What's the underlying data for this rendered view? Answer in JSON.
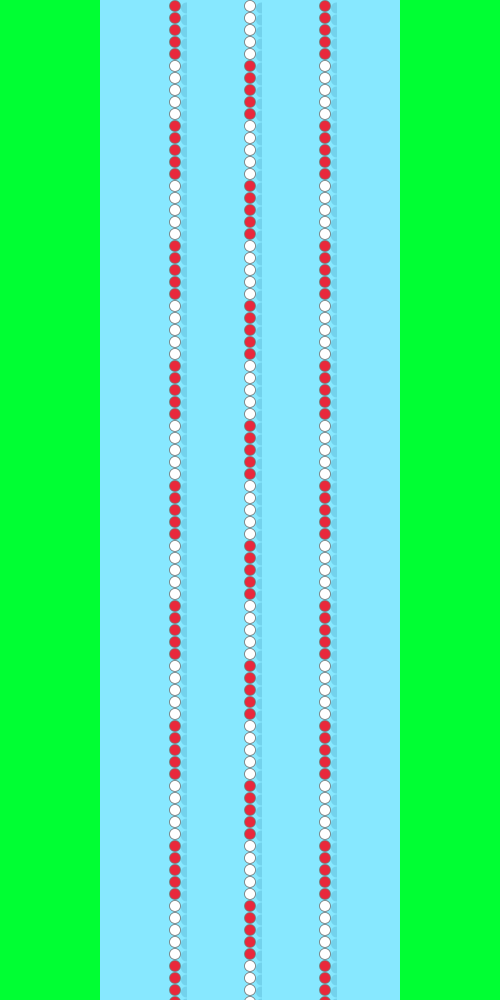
{
  "colors": {
    "grass": "#00FF33",
    "water": "#87E8FF",
    "float_red": "#E8283C",
    "float_white": "#FFFFFF",
    "float_outline": "#7A7A7A",
    "float_shadow": "#6CCBE6"
  },
  "lane_ropes": [
    {
      "name": "lane-rope-left",
      "pattern": [
        "red",
        "red",
        "red",
        "red",
        "red",
        "white",
        "white",
        "white",
        "white",
        "white"
      ],
      "phase": 0
    },
    {
      "name": "lane-rope-center",
      "pattern": [
        "white",
        "white",
        "white",
        "white",
        "white",
        "red",
        "red",
        "red",
        "red",
        "red"
      ],
      "phase": 0
    },
    {
      "name": "lane-rope-right",
      "pattern": [
        "red",
        "red",
        "red",
        "red",
        "red",
        "white",
        "white",
        "white",
        "white",
        "white"
      ],
      "phase": 0
    }
  ]
}
